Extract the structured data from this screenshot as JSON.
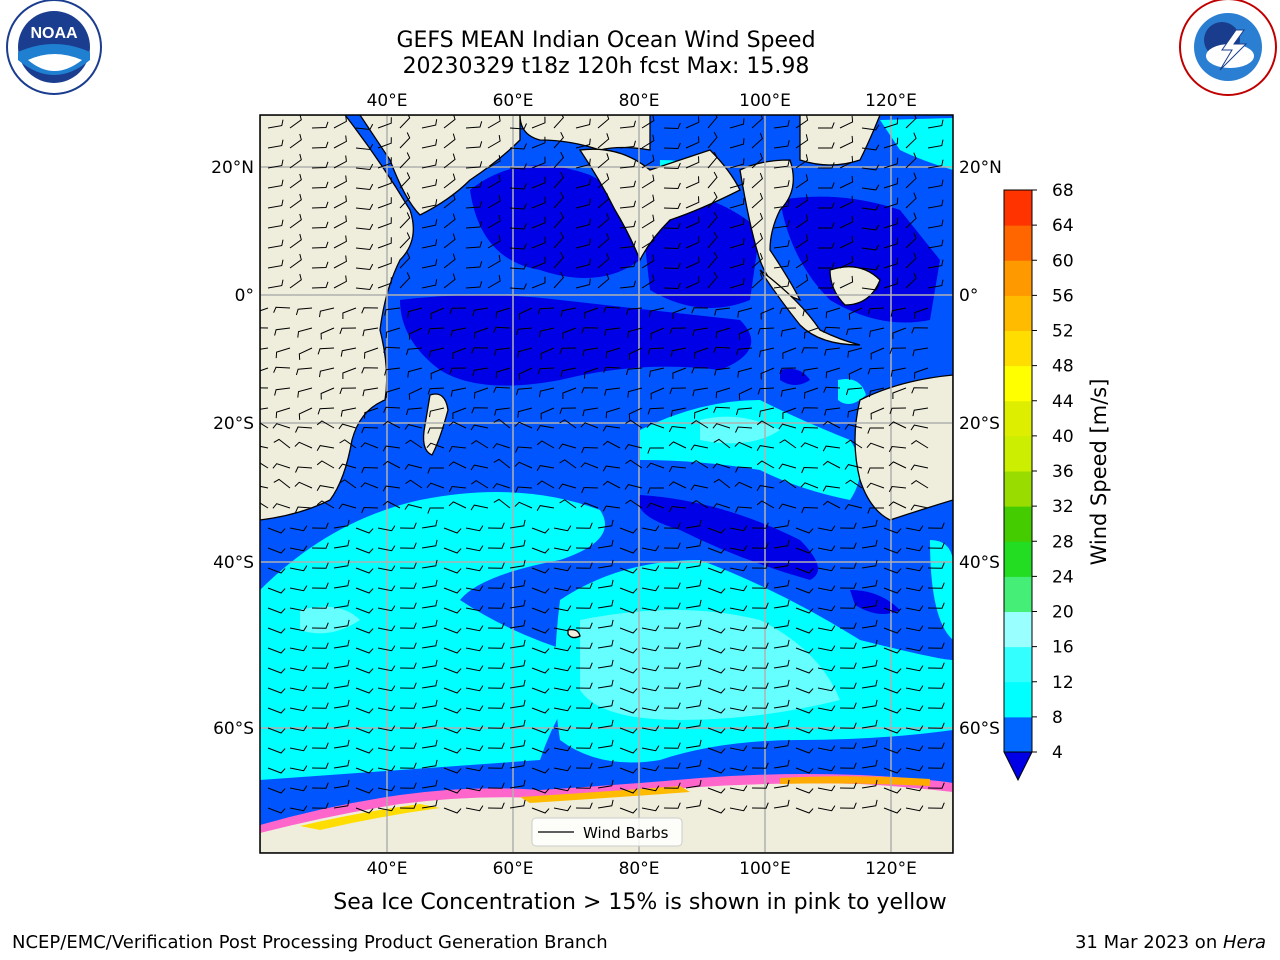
{
  "header": {
    "title_line1": "GEFS MEAN Indian Ocean Wind Speed",
    "title_line2": "20230329 t18z 120h fcst   Max: 15.98"
  },
  "logos": {
    "left": "noaa-logo",
    "left_text": "NOAA",
    "left_ring_text": "NATIONAL OCEANIC AND ATMOSPHERIC ADMINISTRATION · U.S. DEPARTMENT OF COMMERCE",
    "right": "nws-logo",
    "right_ring_text": "NATIONAL WEATHER SERVICE"
  },
  "map": {
    "lon_ticks": [
      "40°E",
      "60°E",
      "80°E",
      "100°E",
      "120°E"
    ],
    "lat_ticks": [
      "20°N",
      "0°",
      "20°S",
      "40°S",
      "60°S"
    ],
    "legend_label": "Wind Barbs",
    "ocean_base_color": "#0055ff",
    "land_color": "#efeedd"
  },
  "colorbar": {
    "title": "Wind Speed [m/s]",
    "ticks": [
      "4",
      "8",
      "12",
      "16",
      "20",
      "24",
      "28",
      "32",
      "36",
      "40",
      "44",
      "48",
      "52",
      "56",
      "60",
      "64",
      "68"
    ],
    "under_color": "#0000e6",
    "colors": [
      "#0066ff",
      "#00ffff",
      "#33ffff",
      "#99ffff",
      "#44ee77",
      "#22dd22",
      "#44cc00",
      "#99dd00",
      "#ccee00",
      "#ddee00",
      "#ffff00",
      "#ffdd00",
      "#ffbb00",
      "#ff9900",
      "#ff6600",
      "#ff3300",
      "#ff0000"
    ]
  },
  "footer": {
    "note": "Sea Ice Concentration > 15% is shown in pink to yellow",
    "credit_left": "NCEP/EMC/Verification Post Processing Product Generation Branch",
    "credit_right_date": "31 Mar 2023 on ",
    "credit_right_machine": "Hera"
  }
}
